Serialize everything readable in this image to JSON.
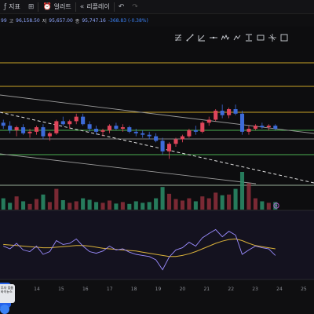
{
  "toolbar": {
    "indicators_label": "지표",
    "alert_label": "얼러트",
    "replay_label": "리플레이"
  },
  "ohlc": {
    "prefix": "99",
    "high_label": "고",
    "high_value": "96,158.50",
    "low_label": "저",
    "low_value": "95,657.00",
    "close_label": "종",
    "close_value": "95,747.16",
    "change": "-368.83 (-0.38%)"
  },
  "colors": {
    "up": "#e0455a",
    "down": "#3d6bd9",
    "rsi": "#9b8cff",
    "rsi_ma": "#d9b13a",
    "hline_yellow": "#c9a227",
    "hline_green": "#4caf50"
  },
  "x_axis": {
    "ticks": [
      "14",
      "15",
      "16",
      "17",
      "18",
      "19",
      "20",
      "21",
      "22",
      "23",
      "24",
      "25"
    ]
  },
  "badge": {
    "text": "투자 맞춤 바이뉴스"
  },
  "chart_data": {
    "type": "candlestick",
    "ohlc_scale_note": "",
    "candles": [
      [
        0.54,
        0.56,
        0.5,
        0.52
      ],
      [
        0.52,
        0.55,
        0.47,
        0.49
      ],
      [
        0.49,
        0.52,
        0.45,
        0.51
      ],
      [
        0.51,
        0.53,
        0.46,
        0.47
      ],
      [
        0.47,
        0.5,
        0.44,
        0.48
      ],
      [
        0.48,
        0.52,
        0.46,
        0.51
      ],
      [
        0.51,
        0.53,
        0.43,
        0.45
      ],
      [
        0.45,
        0.48,
        0.42,
        0.47
      ],
      [
        0.47,
        0.56,
        0.46,
        0.55
      ],
      [
        0.55,
        0.58,
        0.52,
        0.53
      ],
      [
        0.53,
        0.56,
        0.5,
        0.55
      ],
      [
        0.55,
        0.6,
        0.53,
        0.58
      ],
      [
        0.58,
        0.6,
        0.52,
        0.53
      ],
      [
        0.53,
        0.55,
        0.48,
        0.5
      ],
      [
        0.5,
        0.52,
        0.46,
        0.48
      ],
      [
        0.48,
        0.5,
        0.45,
        0.49
      ],
      [
        0.49,
        0.53,
        0.47,
        0.52
      ],
      [
        0.52,
        0.54,
        0.49,
        0.5
      ],
      [
        0.5,
        0.53,
        0.48,
        0.51
      ],
      [
        0.51,
        0.52,
        0.47,
        0.48
      ],
      [
        0.48,
        0.5,
        0.45,
        0.47
      ],
      [
        0.47,
        0.49,
        0.44,
        0.46
      ],
      [
        0.46,
        0.48,
        0.43,
        0.45
      ],
      [
        0.45,
        0.47,
        0.41,
        0.42
      ],
      [
        0.42,
        0.44,
        0.33,
        0.35
      ],
      [
        0.35,
        0.41,
        0.3,
        0.4
      ],
      [
        0.4,
        0.44,
        0.38,
        0.43
      ],
      [
        0.43,
        0.46,
        0.41,
        0.45
      ],
      [
        0.45,
        0.5,
        0.44,
        0.49
      ],
      [
        0.49,
        0.52,
        0.46,
        0.48
      ],
      [
        0.48,
        0.55,
        0.47,
        0.54
      ],
      [
        0.54,
        0.58,
        0.52,
        0.56
      ],
      [
        0.56,
        0.63,
        0.55,
        0.62
      ],
      [
        0.62,
        0.66,
        0.57,
        0.59
      ],
      [
        0.59,
        0.64,
        0.57,
        0.63
      ],
      [
        0.63,
        0.66,
        0.59,
        0.6
      ],
      [
        0.6,
        0.62,
        0.46,
        0.48
      ],
      [
        0.48,
        0.52,
        0.46,
        0.5
      ],
      [
        0.5,
        0.53,
        0.49,
        0.52
      ],
      [
        0.52,
        0.54,
        0.5,
        0.51
      ],
      [
        0.51,
        0.53,
        0.49,
        0.52
      ],
      [
        0.52,
        0.53,
        0.49,
        0.5
      ]
    ],
    "volumes": [
      0.3,
      0.18,
      0.35,
      0.22,
      0.15,
      0.28,
      0.4,
      0.2,
      0.55,
      0.25,
      0.18,
      0.22,
      0.3,
      0.26,
      0.2,
      0.18,
      0.24,
      0.16,
      0.2,
      0.15,
      0.22,
      0.18,
      0.2,
      0.3,
      0.6,
      0.42,
      0.28,
      0.24,
      0.3,
      0.22,
      0.35,
      0.3,
      0.45,
      0.38,
      0.4,
      0.55,
      1.0,
      0.7,
      0.3,
      0.22,
      0.18,
      0.2
    ],
    "rsi": [
      0.55,
      0.5,
      0.6,
      0.48,
      0.45,
      0.55,
      0.4,
      0.45,
      0.65,
      0.58,
      0.6,
      0.68,
      0.55,
      0.45,
      0.42,
      0.46,
      0.55,
      0.48,
      0.5,
      0.44,
      0.4,
      0.38,
      0.36,
      0.3,
      0.12,
      0.35,
      0.48,
      0.52,
      0.62,
      0.55,
      0.7,
      0.78,
      0.85,
      0.72,
      0.82,
      0.75,
      0.4,
      0.48,
      0.55,
      0.52,
      0.5,
      0.38
    ],
    "rsi_ma": [
      0.58,
      0.57,
      0.56,
      0.55,
      0.54,
      0.53,
      0.52,
      0.52,
      0.53,
      0.54,
      0.55,
      0.56,
      0.56,
      0.55,
      0.53,
      0.51,
      0.5,
      0.49,
      0.48,
      0.47,
      0.46,
      0.44,
      0.42,
      0.4,
      0.38,
      0.36,
      0.36,
      0.38,
      0.41,
      0.45,
      0.5,
      0.55,
      0.6,
      0.64,
      0.67,
      0.68,
      0.65,
      0.6,
      0.56,
      0.54,
      0.52,
      0.5
    ]
  }
}
